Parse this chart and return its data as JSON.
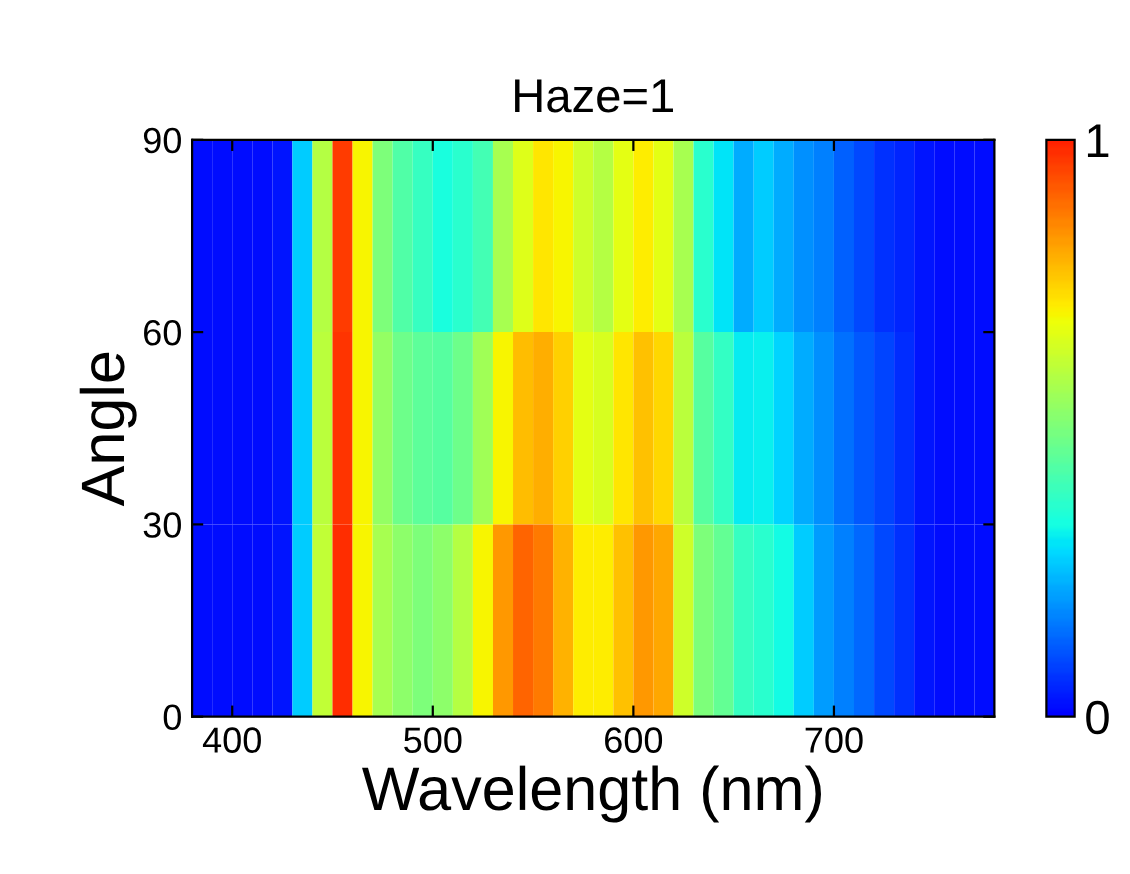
{
  "chart_data": {
    "type": "heatmap",
    "title": "Haze=1",
    "xlabel": "Wavelength (nm)",
    "ylabel": "Angle",
    "xlim": [
      380,
      780
    ],
    "xticks": [
      400,
      500,
      600,
      700
    ],
    "ylim": [
      0,
      90
    ],
    "yticks": [
      0,
      30,
      60,
      90
    ],
    "clim": [
      0,
      1
    ],
    "cticks": [
      0,
      1
    ],
    "cells": [
      [
        0.02,
        0.02,
        0.02,
        0.02,
        0.03,
        0.27,
        0.59,
        0.96,
        0.7,
        0.5,
        0.43,
        0.39,
        0.34,
        0.37,
        0.41,
        0.57,
        0.66,
        0.72,
        0.7,
        0.63,
        0.59,
        0.67,
        0.71,
        0.67,
        0.57,
        0.37,
        0.3,
        0.23,
        0.27,
        0.23,
        0.19,
        0.17,
        0.13,
        0.1,
        0.07,
        0.05,
        0.03,
        0.02,
        0.02,
        0.02
      ],
      [
        0.02,
        0.02,
        0.02,
        0.02,
        0.03,
        0.27,
        0.6,
        0.97,
        0.7,
        0.54,
        0.48,
        0.45,
        0.44,
        0.48,
        0.56,
        0.7,
        0.78,
        0.8,
        0.75,
        0.67,
        0.65,
        0.72,
        0.77,
        0.74,
        0.6,
        0.44,
        0.38,
        0.31,
        0.32,
        0.28,
        0.23,
        0.19,
        0.15,
        0.12,
        0.09,
        0.06,
        0.03,
        0.02,
        0.02,
        0.02
      ],
      [
        0.02,
        0.02,
        0.02,
        0.02,
        0.03,
        0.27,
        0.61,
        0.98,
        0.7,
        0.57,
        0.53,
        0.5,
        0.53,
        0.59,
        0.7,
        0.83,
        0.9,
        0.87,
        0.79,
        0.71,
        0.71,
        0.77,
        0.83,
        0.81,
        0.63,
        0.5,
        0.46,
        0.39,
        0.37,
        0.33,
        0.27,
        0.21,
        0.17,
        0.14,
        0.1,
        0.07,
        0.03,
        0.02,
        0.02,
        0.02
      ]
    ]
  }
}
